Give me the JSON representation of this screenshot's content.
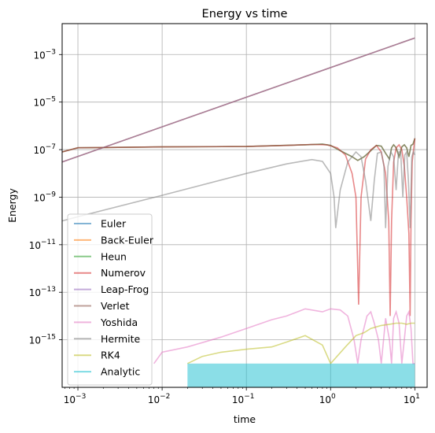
{
  "chart_data": {
    "type": "line",
    "title": "Energy vs time",
    "xlabel": "time",
    "ylabel": "Energy",
    "xscale": "log",
    "yscale": "log",
    "xlim": [
      0.00065,
      14
    ],
    "ylim": [
      1e-17,
      0.02
    ],
    "grid": true,
    "legend_position": "lower-left",
    "x_ticks": [
      {
        "value": 0.001,
        "base": "10",
        "exp": "−3"
      },
      {
        "value": 0.01,
        "base": "10",
        "exp": "−2"
      },
      {
        "value": 0.1,
        "base": "10",
        "exp": "−1"
      },
      {
        "value": 1,
        "base": "10",
        "exp": "0"
      },
      {
        "value": 10,
        "base": "10",
        "exp": "1"
      }
    ],
    "y_ticks": [
      {
        "value": 1e-15,
        "base": "10",
        "exp": "−15"
      },
      {
        "value": 1e-13,
        "base": "10",
        "exp": "−13"
      },
      {
        "value": 1e-11,
        "base": "10",
        "exp": "−11"
      },
      {
        "value": 1e-09,
        "base": "10",
        "exp": "−9"
      },
      {
        "value": 1e-07,
        "base": "10",
        "exp": "−7"
      },
      {
        "value": 1e-05,
        "base": "10",
        "exp": "−5"
      },
      {
        "value": 0.001,
        "base": "10",
        "exp": "−3"
      }
    ],
    "series": [
      {
        "name": "Euler",
        "color": "#1f77b4",
        "x": [
          0.00065,
          10
        ],
        "y": [
          3e-08,
          0.005
        ]
      },
      {
        "name": "Back-Euler",
        "color": "#ff7f0e",
        "x": [
          0.00065,
          10
        ],
        "y": [
          3e-08,
          0.005
        ]
      },
      {
        "name": "Heun",
        "color": "#2ca02c",
        "x": [
          0.00065,
          0.001,
          0.01,
          0.1,
          0.5,
          0.8,
          1.0,
          1.3,
          1.8,
          2.1,
          2.5,
          3.0,
          3.5,
          4.0,
          4.5,
          5.0,
          5.3,
          5.6,
          6.0,
          6.5,
          7.0,
          7.5,
          8.0,
          8.5,
          9.0,
          9.5,
          10
        ],
        "y": [
          8e-08,
          1.2e-07,
          1.3e-07,
          1.35e-07,
          1.6e-07,
          1.7e-07,
          1.5e-07,
          9e-08,
          5e-08,
          3.5e-08,
          5e-08,
          9e-08,
          1.5e-07,
          1.4e-07,
          7e-08,
          4e-08,
          1.2e-07,
          1.6e-07,
          1.2e-07,
          5e-08,
          1.3e-07,
          1.6e-07,
          1.2e-07,
          5e-08,
          1.5e-07,
          1.7e-07,
          3e-07
        ]
      },
      {
        "name": "Numerov",
        "color": "#d62728",
        "x": [
          0.00065,
          0.001,
          0.01,
          0.1,
          0.3,
          0.6,
          0.9,
          1.2,
          1.5,
          1.8,
          2.0,
          2.15,
          2.3,
          2.6,
          3.0,
          3.5,
          4.0,
          4.5,
          4.9,
          5.1,
          5.3,
          5.6,
          6.0,
          6.5,
          7.0,
          7.5,
          8.0,
          8.5,
          8.8,
          9.0,
          9.3,
          10
        ],
        "y": [
          8e-08,
          1.2e-07,
          1.3e-07,
          1.35e-07,
          1.5e-07,
          1.65e-07,
          1.6e-07,
          1.2e-07,
          6e-08,
          1e-08,
          1e-09,
          3e-14,
          1e-09,
          4e-08,
          1e-07,
          1.5e-07,
          8e-08,
          1e-08,
          1e-10,
          1e-14,
          1e-10,
          3e-08,
          1.2e-07,
          1.6e-07,
          1e-07,
          2e-08,
          1e-09,
          3e-11,
          1e-14,
          1e-10,
          3e-08,
          3e-07
        ]
      },
      {
        "name": "Leap-Frog",
        "color": "#9467bd",
        "x": [
          0.00065,
          10
        ],
        "y": [
          3e-08,
          0.005
        ]
      },
      {
        "name": "Verlet",
        "color": "#8c564b",
        "x": [
          0.00065,
          0.001,
          0.01,
          0.1,
          0.5,
          0.8,
          1.0,
          1.3,
          1.8,
          2.1,
          2.5,
          3.0,
          3.5,
          4.0,
          4.5,
          5.0,
          5.3,
          5.6,
          6.0,
          6.5,
          7.0,
          7.5,
          8.0,
          8.5,
          9.0,
          9.5,
          10
        ],
        "y": [
          8e-08,
          1.2e-07,
          1.3e-07,
          1.35e-07,
          1.6e-07,
          1.7e-07,
          1.5e-07,
          9e-08,
          5e-08,
          3.5e-08,
          5e-08,
          9e-08,
          1.5e-07,
          1.4e-07,
          7e-08,
          4e-08,
          1.2e-07,
          1.6e-07,
          1.2e-07,
          5e-08,
          1.3e-07,
          1.6e-07,
          1.2e-07,
          5e-08,
          1.5e-07,
          1.7e-07,
          3e-07
        ]
      },
      {
        "name": "Yoshida",
        "color": "#e377c2",
        "x": [
          0.008,
          0.01,
          0.02,
          0.05,
          0.1,
          0.2,
          0.3,
          0.5,
          0.8,
          1.0,
          1.3,
          1.6,
          1.9,
          2.1,
          2.3,
          2.7,
          3.0,
          3.3,
          3.7,
          4.0,
          4.5,
          5.0,
          5.3,
          5.6,
          6.0,
          6.5,
          7.0,
          7.5,
          8.0,
          8.5,
          9.0,
          9.5,
          10
        ],
        "y": [
          1e-16,
          3e-16,
          5e-16,
          1.3e-15,
          3e-15,
          7e-15,
          1e-14,
          2e-14,
          1.5e-14,
          2e-14,
          1.8e-14,
          1e-14,
          1e-15,
          1e-16,
          1e-15,
          1e-14,
          1.5e-14,
          5e-15,
          1e-15,
          1e-16,
          8e-15,
          1e-15,
          1e-16,
          8e-15,
          1.5e-14,
          5e-15,
          1e-16,
          1e-15,
          1e-14,
          1.5e-14,
          3e-15,
          1e-16,
          1e-16
        ]
      },
      {
        "name": "Hermite",
        "color": "#7f7f7f",
        "x": [
          0.00065,
          0.001,
          0.01,
          0.1,
          0.3,
          0.6,
          0.8,
          1.0,
          1.1,
          1.15,
          1.3,
          1.6,
          2.0,
          2.3,
          2.6,
          3.0,
          3.3,
          3.6,
          4.0,
          4.3,
          4.5,
          4.8,
          5.2,
          5.6,
          6.0,
          6.4,
          6.8,
          7.2,
          7.6,
          8.0,
          8.4,
          8.8,
          9.2,
          9.6,
          10
        ],
        "y": [
          1e-10,
          1.5e-10,
          1.2e-09,
          1e-08,
          2.5e-08,
          3.8e-08,
          3.2e-08,
          1e-08,
          1e-09,
          5e-11,
          2e-09,
          3e-08,
          8e-08,
          5e-08,
          5e-09,
          1e-10,
          5e-09,
          7e-08,
          8e-08,
          2e-08,
          5e-11,
          2e-08,
          8e-08,
          5e-08,
          2e-09,
          8e-08,
          8e-08,
          1e-09,
          6e-08,
          8e-08,
          5e-09,
          5e-11,
          5e-08,
          8e-08,
          6e-08
        ]
      },
      {
        "name": "RK4",
        "color": "#bcbd22",
        "x": [
          0.02,
          0.03,
          0.05,
          0.1,
          0.2,
          0.3,
          0.5,
          0.8,
          1.0,
          1.5,
          2.0,
          2.5,
          3.0,
          3.5,
          4.0,
          5.0,
          6.0,
          7.0,
          8.0,
          9.0,
          10
        ],
        "y": [
          1e-16,
          2e-16,
          3e-16,
          4e-16,
          5e-16,
          8e-16,
          1.5e-15,
          6e-16,
          1e-16,
          5e-16,
          1.5e-15,
          2e-15,
          3e-15,
          3.5e-15,
          4e-15,
          4.5e-15,
          5e-15,
          5e-15,
          4.5e-15,
          5e-15,
          5e-15
        ]
      },
      {
        "name": "Analytic",
        "color": "#17becf",
        "x": [
          0.02,
          10
        ],
        "y": [
          1e-16,
          1e-16
        ]
      }
    ]
  }
}
